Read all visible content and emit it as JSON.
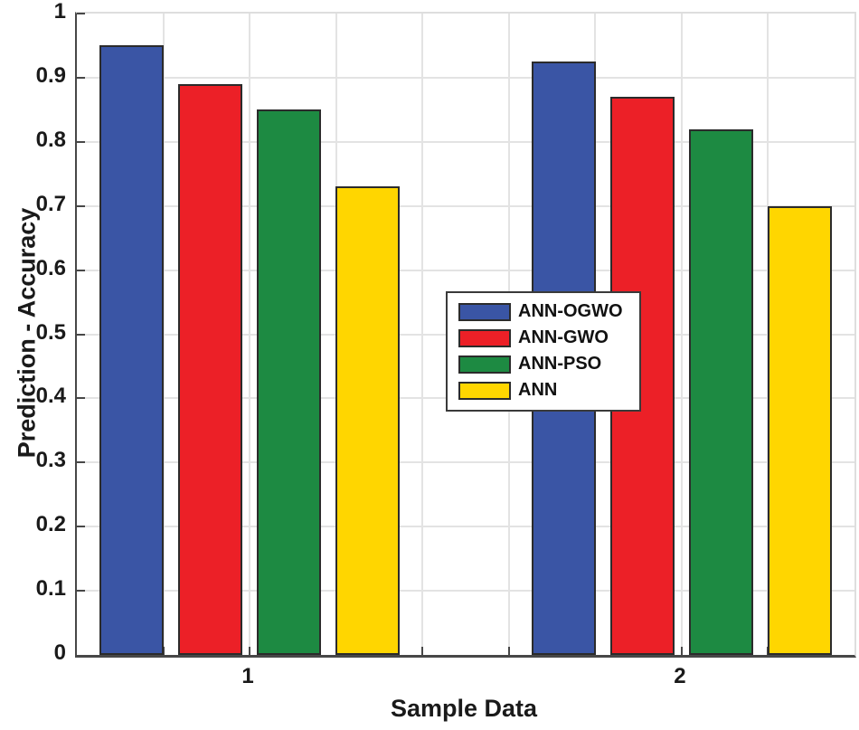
{
  "chart_data": {
    "type": "bar",
    "xlabel": "Sample Data",
    "ylabel": "Prediction - Accuracy",
    "categories": [
      "1",
      "2"
    ],
    "series": [
      {
        "name": "ANN-OGWO",
        "color": "#3A55A5",
        "values": [
          0.95,
          0.925
        ]
      },
      {
        "name": "ANN-GWO",
        "color": "#EC2027",
        "values": [
          0.89,
          0.87
        ]
      },
      {
        "name": "ANN-PSO",
        "color": "#1D8A42",
        "values": [
          0.85,
          0.82
        ]
      },
      {
        "name": "ANN",
        "color": "#FFD600",
        "values": [
          0.73,
          0.7
        ]
      }
    ],
    "ylim": [
      0,
      1
    ],
    "xlim": [
      0.6,
      2.4
    ],
    "x_category_positions": [
      1,
      2
    ],
    "y_tick_step": 0.1,
    "x_grid_step": 0.2,
    "y_tick_labels": [
      "0",
      "0.1",
      "0.2",
      "0.3",
      "0.4",
      "0.5",
      "0.6",
      "0.7",
      "0.8",
      "0.9",
      "1"
    ],
    "grid": true,
    "legend_position": "middle-center",
    "bar_edge_color": "#2b2b2b",
    "axis_color": "#474747",
    "grid_color": "#e3e3e3",
    "background": "#ffffff"
  }
}
